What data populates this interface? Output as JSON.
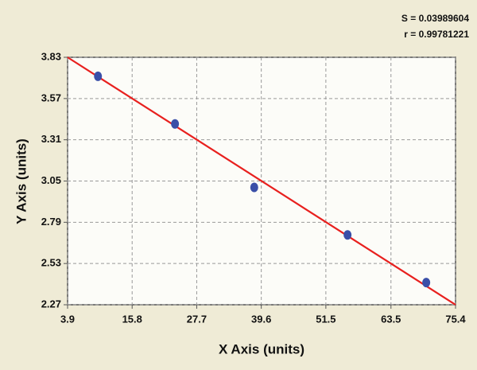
{
  "chart_data": {
    "type": "scatter",
    "annotations": [
      "S = 0.03989604",
      "r = 0.99781221"
    ],
    "x_label": "X Axis (units)",
    "y_label": "Y Axis (units)",
    "points": {
      "x": [
        9.5,
        23.7,
        38.3,
        55.5,
        70.0
      ],
      "y": [
        3.71,
        3.41,
        3.01,
        2.71,
        2.41
      ],
      "color": "#3a4fa8"
    },
    "fit_line": {
      "x": [
        3.9,
        75.4
      ],
      "y": [
        3.83,
        2.27
      ],
      "color": "#e8201e"
    },
    "xlim": [
      3.9,
      75.4
    ],
    "xticks": [
      3.9,
      15.8,
      27.7,
      39.6,
      51.5,
      63.5,
      75.4
    ],
    "ylim": [
      2.27,
      3.83
    ],
    "yticks": [
      2.27,
      2.53,
      2.79,
      3.05,
      3.31,
      3.57,
      3.83
    ],
    "grid": true
  }
}
